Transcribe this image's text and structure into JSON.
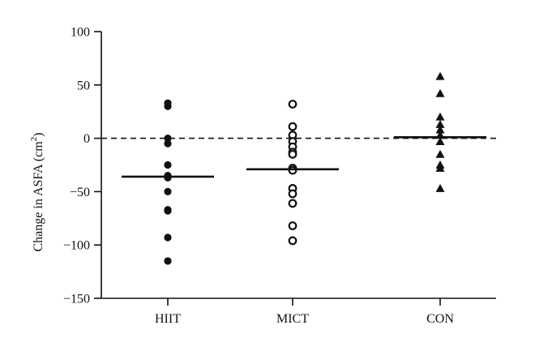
{
  "chart_data": {
    "type": "scatter",
    "title": "",
    "xlabel": "",
    "ylabel": "Change in ASFA (cm",
    "ylabel_sup": "2",
    "ylabel_close": ")",
    "ylim": [
      -150,
      100
    ],
    "yticks": [
      100,
      50,
      0,
      -50,
      -100,
      -150
    ],
    "ytick_labels": [
      "100",
      "50",
      "0",
      "−50",
      "−100",
      "−150"
    ],
    "grid": false,
    "reference_line": 0,
    "categories": [
      "HIIT",
      "MICT",
      "CON"
    ],
    "series": [
      {
        "category": "HIIT",
        "marker": "filled-circle",
        "values": [
          33,
          30,
          0,
          -5,
          -25,
          -35,
          -37,
          -50,
          -67,
          -68,
          -93,
          -115
        ],
        "mean": -36
      },
      {
        "category": "MICT",
        "marker": "open-circle",
        "values": [
          32,
          11,
          3,
          -3,
          -8,
          -13,
          -15,
          -28,
          -30,
          -47,
          -52,
          -61,
          -82,
          -96
        ],
        "mean": -29
      },
      {
        "category": "CON",
        "marker": "filled-triangle",
        "values": [
          58,
          42,
          20,
          13,
          8,
          3,
          -3,
          -15,
          -25,
          -28,
          -47
        ],
        "mean": 1
      }
    ]
  }
}
